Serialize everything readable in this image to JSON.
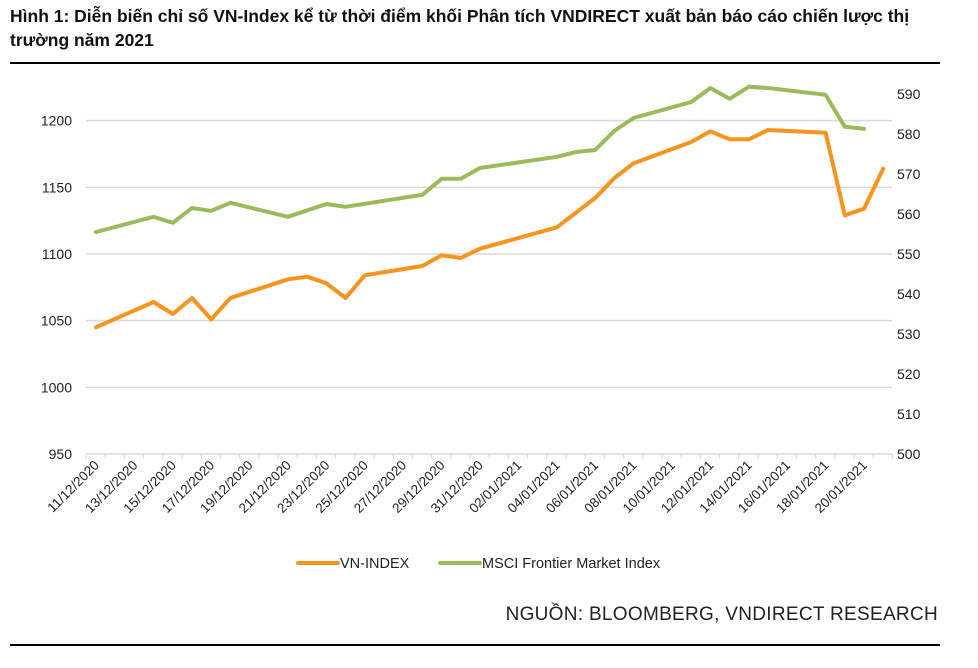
{
  "title": "Hình 1: Diễn biến chỉ số VN-Index kể từ thời điểm khối Phân tích VNDIRECT xuất bản báo cáo chiến lược thị trường năm 2021",
  "source": "NGUỒN: BLOOMBERG, VNDIRECT RESEARCH",
  "chart_data": {
    "type": "line",
    "title": "",
    "x_start": "11/12/2020",
    "x_end": "21/01/2021",
    "x_tick_labels": [
      "11/12/2020",
      "13/12/2020",
      "15/12/2020",
      "17/12/2020",
      "19/12/2020",
      "21/12/2020",
      "23/12/2020",
      "25/12/2020",
      "27/12/2020",
      "29/12/2020",
      "31/12/2020",
      "02/01/2021",
      "04/01/2021",
      "06/01/2021",
      "08/01/2021",
      "10/01/2021",
      "12/01/2021",
      "14/01/2021",
      "16/01/2021",
      "18/01/2021",
      "20/01/2021"
    ],
    "y_left": {
      "lim": [
        950,
        1250
      ],
      "ticks": [
        950,
        1000,
        1050,
        1100,
        1150,
        1200
      ]
    },
    "y_right": {
      "lim": [
        500,
        600
      ],
      "ticks": [
        500,
        510,
        520,
        530,
        540,
        550,
        560,
        570,
        580,
        590
      ]
    },
    "grid": true,
    "legend": "bottom",
    "series": [
      {
        "name": "VN-INDEX",
        "axis": "left",
        "color": "#F7941D",
        "points": [
          [
            "11/12/2020",
            1045
          ],
          [
            "14/12/2020",
            1064
          ],
          [
            "15/12/2020",
            1055
          ],
          [
            "16/12/2020",
            1067
          ],
          [
            "17/12/2020",
            1051
          ],
          [
            "18/12/2020",
            1067
          ],
          [
            "21/12/2020",
            1081
          ],
          [
            "22/12/2020",
            1083
          ],
          [
            "23/12/2020",
            1078
          ],
          [
            "24/12/2020",
            1067
          ],
          [
            "25/12/2020",
            1084
          ],
          [
            "28/12/2020",
            1091
          ],
          [
            "29/12/2020",
            1099
          ],
          [
            "30/12/2020",
            1097
          ],
          [
            "31/12/2020",
            1104
          ],
          [
            "04/01/2021",
            1120
          ],
          [
            "06/01/2021",
            1142
          ],
          [
            "07/01/2021",
            1157
          ],
          [
            "08/01/2021",
            1168
          ],
          [
            "11/01/2021",
            1184
          ],
          [
            "12/01/2021",
            1192
          ],
          [
            "13/01/2021",
            1186
          ],
          [
            "14/01/2021",
            1186
          ],
          [
            "15/01/2021",
            1193
          ],
          [
            "18/01/2021",
            1191
          ],
          [
            "19/01/2021",
            1129
          ],
          [
            "20/01/2021",
            1134
          ],
          [
            "21/01/2021",
            1164
          ]
        ]
      },
      {
        "name": "MSCI Frontier Market Index",
        "axis": "right",
        "color": "#9BBB59",
        "points": [
          [
            "11/12/2020",
            555.5
          ],
          [
            "14/12/2020",
            559.3
          ],
          [
            "15/12/2020",
            557.8
          ],
          [
            "16/12/2020",
            561.5
          ],
          [
            "17/12/2020",
            560.8
          ],
          [
            "18/12/2020",
            562.8
          ],
          [
            "21/12/2020",
            559.3
          ],
          [
            "23/12/2020",
            562.5
          ],
          [
            "24/12/2020",
            561.8
          ],
          [
            "28/12/2020",
            564.8
          ],
          [
            "29/12/2020",
            568.8
          ],
          [
            "30/12/2020",
            568.8
          ],
          [
            "31/12/2020",
            571.5
          ],
          [
            "04/01/2021",
            574.3
          ],
          [
            "05/01/2021",
            575.5
          ],
          [
            "06/01/2021",
            576.0
          ],
          [
            "07/01/2021",
            580.8
          ],
          [
            "08/01/2021",
            584.0
          ],
          [
            "11/01/2021",
            588.0
          ],
          [
            "12/01/2021",
            591.5
          ],
          [
            "13/01/2021",
            588.8
          ],
          [
            "14/01/2021",
            591.8
          ],
          [
            "15/01/2021",
            591.5
          ],
          [
            "18/01/2021",
            589.8
          ],
          [
            "19/01/2021",
            581.8
          ],
          [
            "20/01/2021",
            581.3
          ]
        ]
      }
    ]
  }
}
